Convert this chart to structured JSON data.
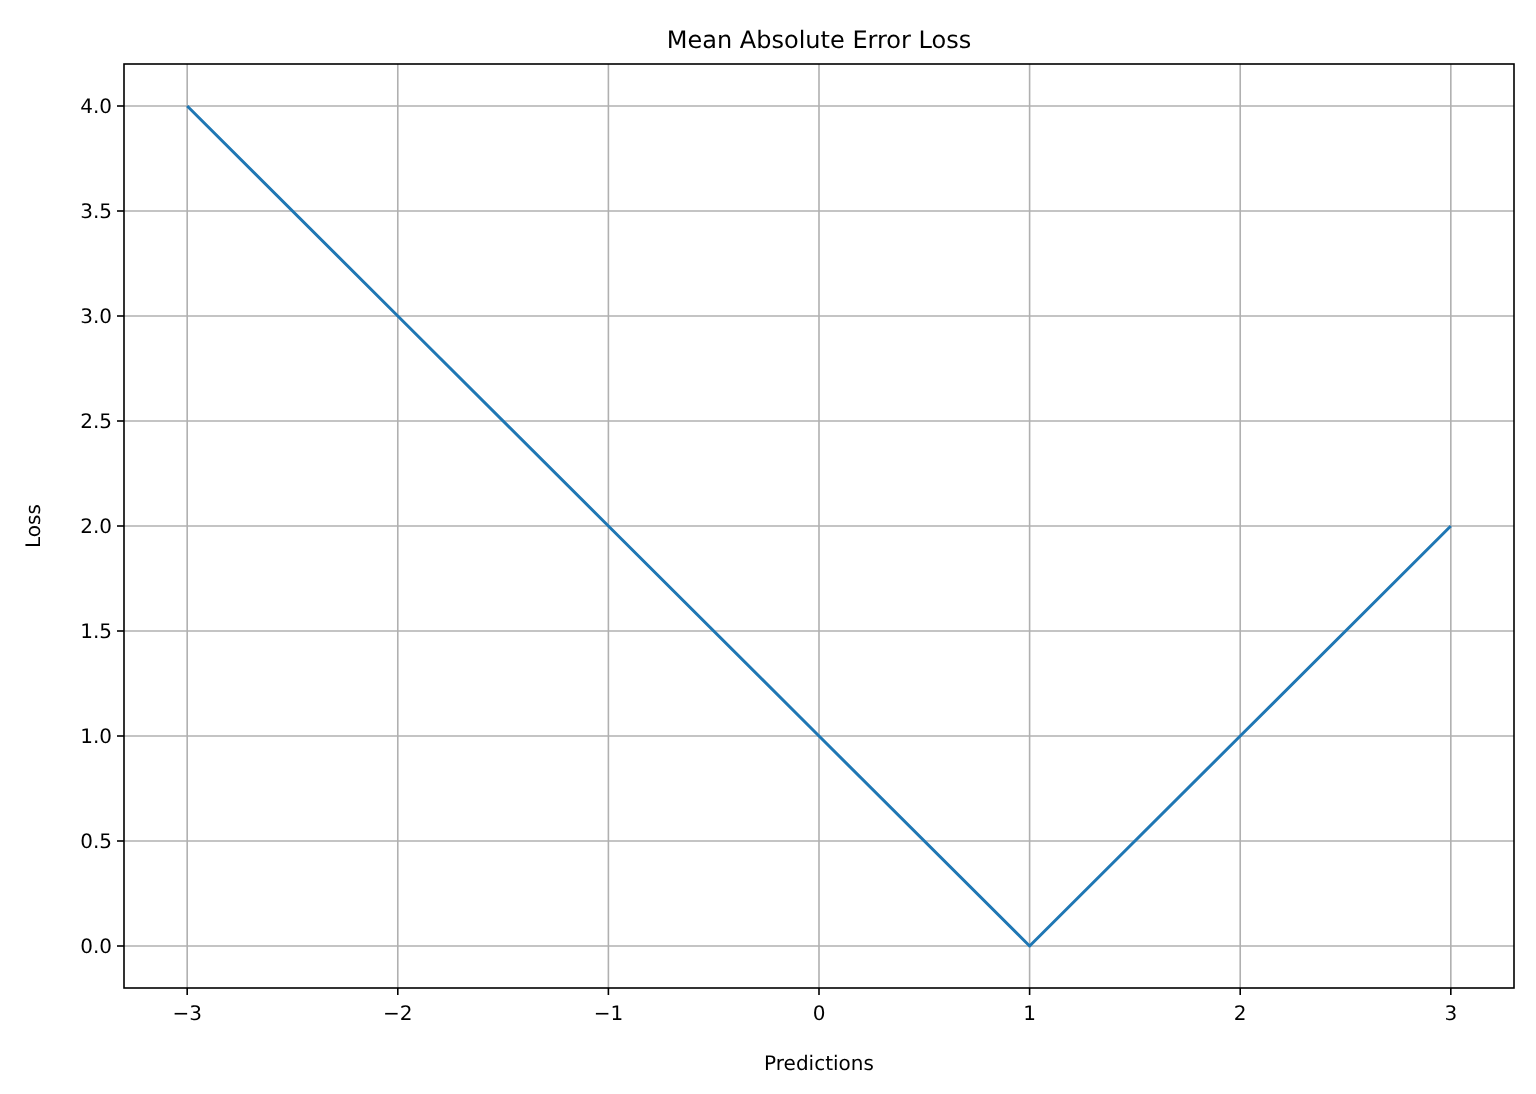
{
  "chart_data": {
    "type": "line",
    "title": "Mean Absolute Error Loss",
    "xlabel": "Predictions",
    "ylabel": "Loss",
    "x": [
      -3,
      -2,
      -1,
      0,
      1,
      2,
      3
    ],
    "series": [
      {
        "color": "#1f77b4",
        "values": [
          4,
          3,
          2,
          1,
          0,
          1,
          2
        ]
      }
    ],
    "xlim": [
      -3.3,
      3.3
    ],
    "ylim": [
      -0.2,
      4.2
    ],
    "xticks": [
      {
        "value": -3,
        "label": "−3"
      },
      {
        "value": -2,
        "label": "−2"
      },
      {
        "value": -1,
        "label": "−1"
      },
      0,
      1,
      2,
      3
    ],
    "yticks": [
      {
        "value": 0,
        "label": "0.0"
      },
      {
        "value": 0.5,
        "label": "0.5"
      },
      {
        "value": 1,
        "label": "1.0"
      },
      {
        "value": 1.5,
        "label": "1.5"
      },
      {
        "value": 2,
        "label": "2.0"
      },
      {
        "value": 2.5,
        "label": "2.5"
      },
      {
        "value": 3,
        "label": "3.0"
      },
      {
        "value": 3.5,
        "label": "3.5"
      },
      {
        "value": 4,
        "label": "4.0"
      }
    ],
    "grid": true,
    "marker": "none",
    "line_style": "solid"
  }
}
